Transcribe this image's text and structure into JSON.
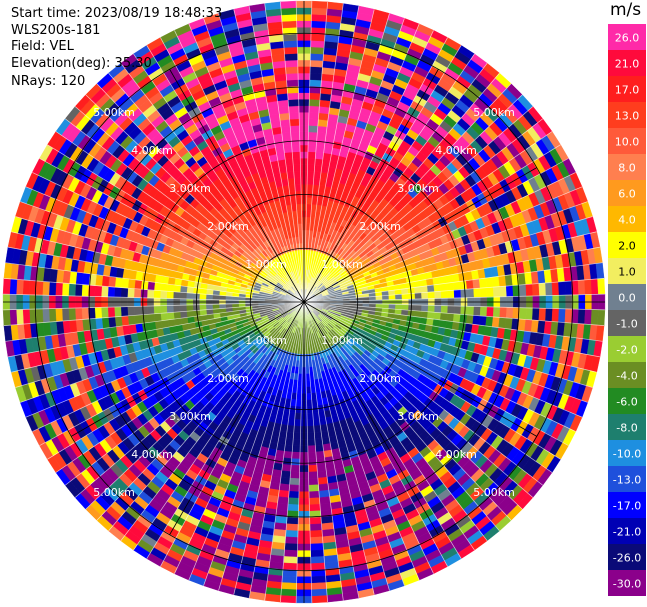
{
  "header": {
    "start_time": "Start time: 2023/08/19 18:48:33",
    "instrument": "WLS200s-181",
    "field": "Field: VEL",
    "elevation": "Elevation(deg): 35.30",
    "nrays": "NRays: 120"
  },
  "colorbar": {
    "unit": "m/s",
    "ticks": [
      "26.0",
      "21.0",
      "17.0",
      "13.0",
      "10.0",
      "8.0",
      "6.0",
      "4.0",
      "2.0",
      "1.0",
      "0.0",
      "-1.0",
      "-2.0",
      "-4.0",
      "-6.0",
      "-8.0",
      "-10.0",
      "-13.0",
      "-17.0",
      "-21.0",
      "-26.0",
      "-30.0"
    ],
    "colors": [
      "#ff2aa8",
      "#ff0a3c",
      "#ff1e1e",
      "#ff3d1e",
      "#ff5a3a",
      "#ff7f4f",
      "#ff9a1e",
      "#ffb800",
      "#ffff00",
      "#f2ee60",
      "#708090",
      "#646464",
      "#9acd32",
      "#6b8e23",
      "#228b22",
      "#1e7f6e",
      "#1e8fe0",
      "#1e50dc",
      "#0000ff",
      "#0000b4",
      "#0a0a78",
      "#8b008b"
    ]
  },
  "chart_data": {
    "type": "heatmap",
    "projection": "polar (PPI)",
    "field": "VEL",
    "units": "m/s",
    "nrays": 120,
    "vmin": -30.0,
    "vmax": 26.0,
    "range_rings_km": [
      1.0,
      2.0,
      3.0,
      4.0,
      5.0
    ],
    "ring_labels": [
      "1.00km",
      "2.00km",
      "3.00km",
      "4.00km",
      "5.00km"
    ],
    "max_range_km": 5.6,
    "velocity_pattern": {
      "north_sector": "positive (yellow to red, 2 to 21 m/s)",
      "south_sector": "negative (green to dark blue, -4 to -26 m/s)",
      "near_center": "near zero (grey)",
      "outer_ranges": "noisy, mixed values"
    }
  }
}
